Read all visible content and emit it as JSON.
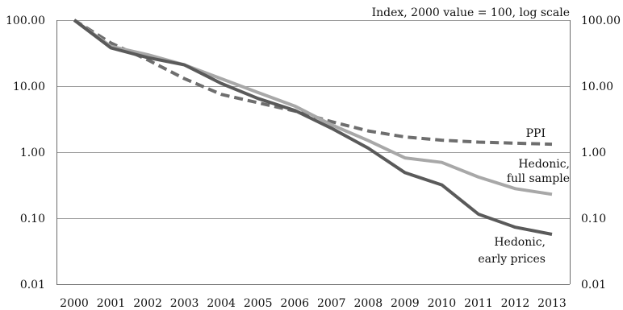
{
  "chart_data": {
    "type": "line",
    "title": "",
    "note": "Index, 2000 value = 100, log scale",
    "xlabel": "",
    "ylabel": "",
    "y_scale": "log",
    "ylim": [
      0.01,
      100
    ],
    "grid": true,
    "y_ticks": [
      "0.01",
      "0.10",
      "1.00",
      "10.00",
      "100.00"
    ],
    "y_tick_values": [
      0.01,
      0.1,
      1,
      10,
      100
    ],
    "y2_ticks": [
      "0.01",
      "0.10",
      "1.00",
      "10.00",
      "100.00"
    ],
    "categories": [
      "2000",
      "2001",
      "2002",
      "2003",
      "2004",
      "2005",
      "2006",
      "2007",
      "2008",
      "2009",
      "2010",
      "2011",
      "2012",
      "2013"
    ],
    "series": [
      {
        "name": "PPI",
        "style": "dashed",
        "color": "#6e6e6e",
        "values": [
          100,
          45,
          25,
          13,
          7.5,
          5.6,
          4.2,
          2.9,
          2.1,
          1.7,
          1.52,
          1.42,
          1.37,
          1.32
        ]
      },
      {
        "name": "Hedonic, full sample",
        "style": "solid",
        "color": "#a8a8a8",
        "values": [
          100,
          40,
          30,
          21,
          13,
          8,
          5,
          2.6,
          1.5,
          0.82,
          0.7,
          0.42,
          0.28,
          0.23
        ]
      },
      {
        "name": "Hedonic, early prices",
        "style": "solid",
        "color": "#5a5a5a",
        "values": [
          100,
          38,
          27,
          21,
          11,
          6.5,
          4.3,
          2.3,
          1.15,
          0.49,
          0.32,
          0.115,
          0.073,
          0.057
        ]
      }
    ]
  },
  "labels": {
    "ppi": "PPI",
    "full_1": "Hedonic,",
    "full_2": "full sample",
    "early_1": "Hedonic,",
    "early_2": "early prices"
  }
}
